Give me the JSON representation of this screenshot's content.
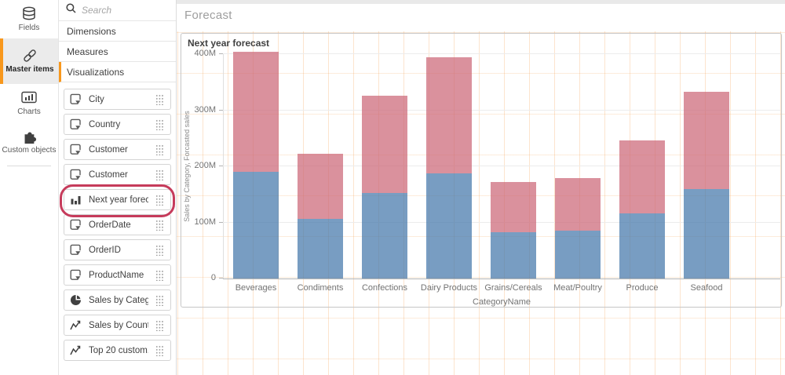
{
  "nav": {
    "items": [
      {
        "label": "Fields",
        "active": false
      },
      {
        "label": "Master items",
        "active": true
      },
      {
        "label": "Charts",
        "active": false
      },
      {
        "label": "Custom objects",
        "active": false
      }
    ],
    "accent_color": "#f8981d"
  },
  "panel": {
    "search_placeholder": "Search",
    "sections": [
      {
        "label": "Dimensions",
        "selected": false
      },
      {
        "label": "Measures",
        "selected": false
      },
      {
        "label": "Visualizations",
        "selected": true
      }
    ],
    "items": [
      {
        "label": "City",
        "icon": "dimension"
      },
      {
        "label": "Country",
        "icon": "dimension"
      },
      {
        "label": "Customer",
        "icon": "dimension"
      },
      {
        "label": "Customer",
        "icon": "dimension"
      },
      {
        "label": "Next year forec...",
        "icon": "barchart",
        "highlighted": true
      },
      {
        "label": "OrderDate",
        "icon": "dimension"
      },
      {
        "label": "OrderID",
        "icon": "dimension"
      },
      {
        "label": "ProductName",
        "icon": "dimension"
      },
      {
        "label": "Sales by Categ...",
        "icon": "pie"
      },
      {
        "label": "Sales by Count...",
        "icon": "linechart"
      },
      {
        "label": "Top 20 custom...",
        "icon": "linechart"
      }
    ],
    "highlight_color": "#c63b5b"
  },
  "main": {
    "page_title": "Forecast"
  },
  "chart_data": {
    "type": "bar",
    "stacked": true,
    "title": "Next year forecast",
    "xlabel": "CategoryName",
    "ylabel": "Sales by Category, Forcasted sales",
    "categories": [
      "Beverages",
      "Condiments",
      "Confections",
      "Dairy Products",
      "Grains/Cereals",
      "Meat/Poultry",
      "Produce",
      "Seafood"
    ],
    "series": [
      {
        "name": "Sales by Category",
        "color": "rgba(68,119,170,0.72)",
        "values": [
          190,
          106,
          152,
          187,
          83,
          85,
          116,
          159
        ]
      },
      {
        "name": "Forcasted sales",
        "color": "rgba(204,102,119,0.72)",
        "values": [
          215,
          116,
          174,
          207,
          89,
          94,
          130,
          174
        ]
      }
    ],
    "unit": "M",
    "ylim": [
      0,
      400
    ],
    "y_ticks": [
      {
        "label": "0",
        "value": 0
      },
      {
        "label": "100M",
        "value": 100
      },
      {
        "label": "200M",
        "value": 200
      },
      {
        "label": "300M",
        "value": 300
      },
      {
        "label": "400M",
        "value": 400
      }
    ],
    "grid": true,
    "legend": "none"
  }
}
